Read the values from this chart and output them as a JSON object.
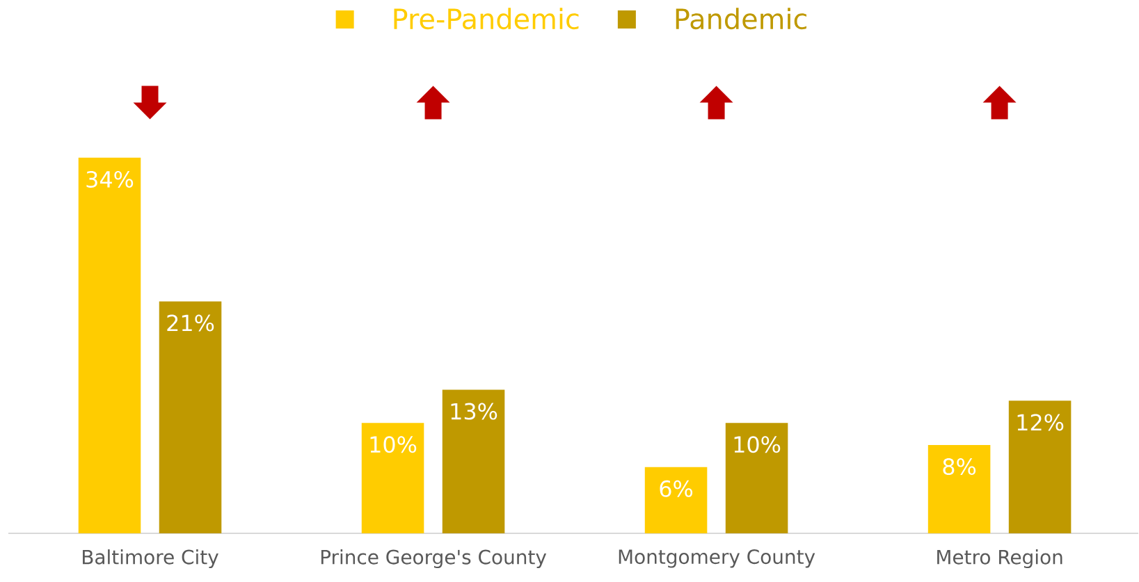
{
  "chart_data": {
    "type": "bar",
    "categories": [
      "Baltimore City",
      "Prince George's County",
      "Montgomery County",
      "Metro Region"
    ],
    "series": [
      {
        "name": "Pre-Pandemic",
        "color": "#ffcc00",
        "values": [
          34,
          10,
          6,
          8
        ],
        "value_labels": [
          "34%",
          "10%",
          "6%",
          "8%"
        ]
      },
      {
        "name": "Pandemic",
        "color": "#bf9900",
        "values": [
          21,
          13,
          10,
          12
        ],
        "value_labels": [
          "21%",
          "13%",
          "10%",
          "12%"
        ]
      }
    ],
    "legend": "top"
  }
}
